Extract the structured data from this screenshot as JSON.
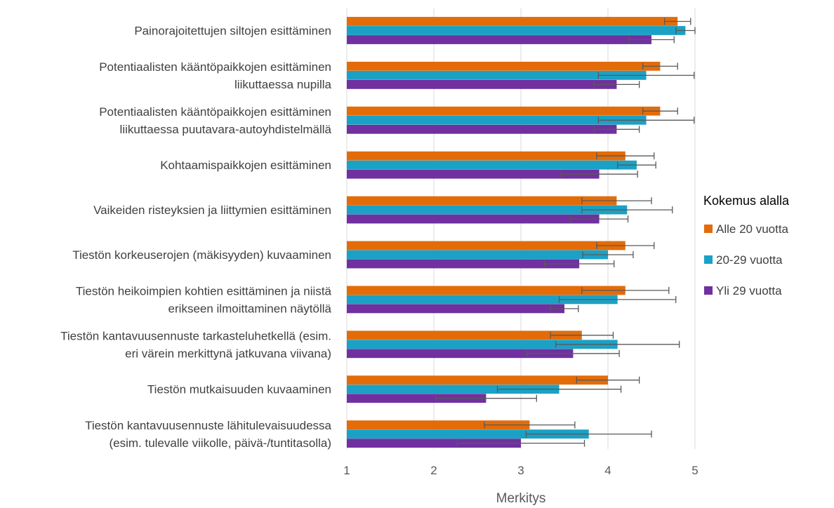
{
  "chart_data": {
    "type": "bar",
    "orientation": "horizontal",
    "categories": [
      [
        "Painorajoitettujen siltojen esittäminen"
      ],
      [
        "Potentiaalisten kääntöpaikkojen esittäminen",
        "liikuttaessa nupilla"
      ],
      [
        "Potentiaalisten kääntöpaikkojen esittäminen",
        "liikuttaessa puutavara-autoyhdistelmällä"
      ],
      [
        "Kohtaamispaikkojen esittäminen"
      ],
      [
        "Vaikeiden risteyksien ja liittymien esittäminen"
      ],
      [
        "Tiestön korkeuserojen (mäkisyyden) kuvaaminen"
      ],
      [
        "Tiestön heikoimpien kohtien esittäminen ja niistä",
        "erikseen ilmoittaminen näytöllä"
      ],
      [
        "Tiestön kantavuusennuste tarkasteluhetkellä (esim.",
        "eri värein merkittynä jatkuvana viivana)"
      ],
      [
        "Tiestön mutkaisuuden kuvaaminen"
      ],
      [
        "Tiestön kantavuusennuste lähitulevaisuudessa",
        "(esim. tulevalle viikolle, päivä-/tuntitasolla)"
      ]
    ],
    "series": [
      {
        "name": "Alle 20 vuotta",
        "color": "#E36C09",
        "values": [
          4.8,
          4.6,
          4.6,
          4.2,
          4.1,
          4.2,
          4.2,
          3.7,
          4.0,
          3.1
        ],
        "error": [
          0.15,
          0.2,
          0.2,
          0.33,
          0.4,
          0.33,
          0.5,
          0.36,
          0.36,
          0.52
        ]
      },
      {
        "name": "20-29 vuotta",
        "color": "#1BA1C5",
        "values": [
          4.89,
          4.44,
          4.44,
          4.33,
          4.22,
          4.0,
          4.11,
          4.11,
          3.44,
          3.78
        ],
        "error": [
          0.11,
          0.55,
          0.55,
          0.22,
          0.52,
          0.29,
          0.67,
          0.71,
          0.71,
          0.72
        ]
      },
      {
        "name": "Yli 29 vuotta",
        "color": "#7030A0",
        "values": [
          4.5,
          4.1,
          4.1,
          3.9,
          3.9,
          3.67,
          3.5,
          3.6,
          2.6,
          3.0
        ],
        "error": [
          0.26,
          0.26,
          0.26,
          0.44,
          0.33,
          0.4,
          0.16,
          0.53,
          0.58,
          0.73
        ]
      }
    ],
    "xlabel": "Merkitys",
    "xlim": [
      1,
      5
    ],
    "xticks": [
      "1",
      "2",
      "3",
      "4",
      "5"
    ],
    "grid": true,
    "legend": {
      "title": "Kokemus alalla",
      "position": "right"
    }
  }
}
